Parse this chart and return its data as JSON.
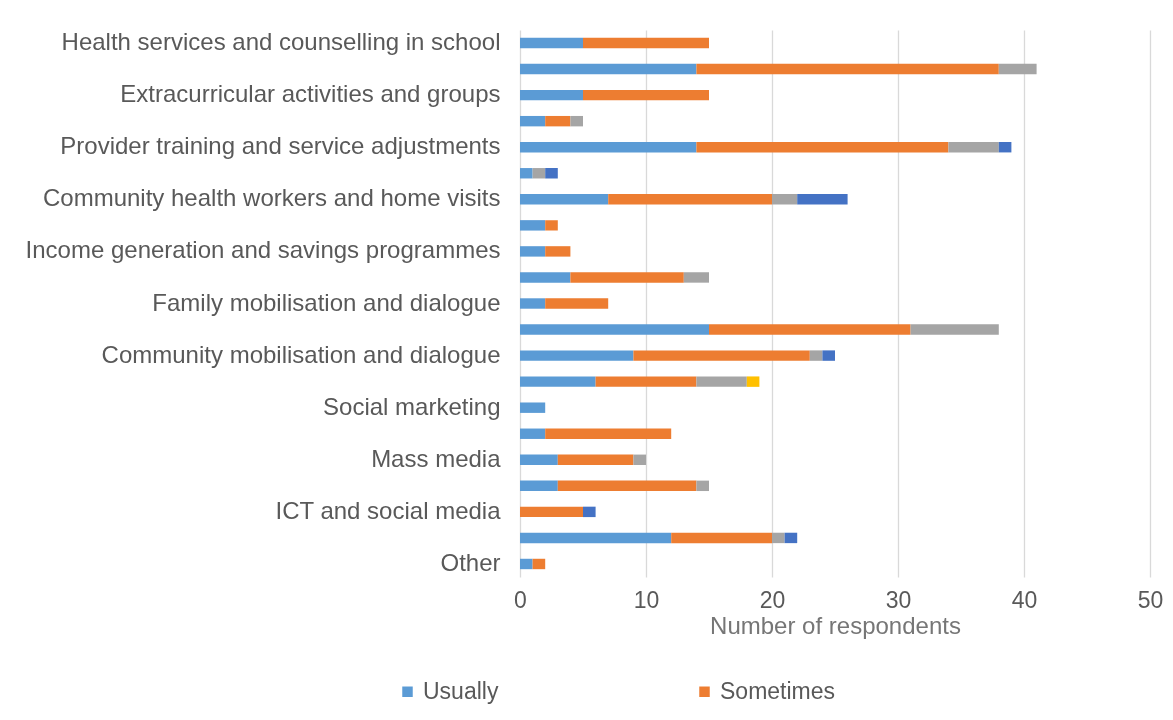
{
  "chart_data": {
    "type": "bar",
    "orientation": "horizontal",
    "stacked": true,
    "xlabel": "Number of respondents",
    "categories": [
      "Health services and counselling in school",
      null,
      "Extracurricular activities and groups",
      null,
      "Provider training and service adjustments",
      null,
      "Community health workers and home visits",
      null,
      "Income generation and savings programmes",
      null,
      "Family mobilisation and dialogue",
      null,
      "Community mobilisation and dialogue",
      null,
      "Social marketing",
      null,
      "Mass media",
      null,
      "ICT and social media",
      null,
      "Other"
    ],
    "series": [
      {
        "name": "Usually",
        "color": "#5b9bd5",
        "values": [
          5,
          14,
          5,
          2,
          14,
          1,
          7,
          2,
          2,
          4,
          2,
          15,
          9,
          6,
          2,
          2,
          3,
          3,
          null,
          12,
          1
        ]
      },
      {
        "name": "Sometimes",
        "color": "#ed7d31",
        "values": [
          10,
          24,
          10,
          2,
          20,
          null,
          13,
          1,
          2,
          9,
          5,
          16,
          14,
          8,
          null,
          10,
          6,
          11,
          5,
          8,
          1
        ]
      },
      {
        "color": "#a5a5a5",
        "values": [
          null,
          3,
          null,
          1,
          4,
          1,
          2,
          null,
          null,
          2,
          null,
          7,
          1,
          4,
          null,
          null,
          1,
          1,
          null,
          1,
          null
        ]
      },
      {
        "color": "#ffc000",
        "values": [
          null,
          null,
          null,
          null,
          null,
          null,
          null,
          null,
          null,
          null,
          null,
          null,
          null,
          1,
          null,
          null,
          null,
          null,
          null,
          null,
          null
        ]
      },
      {
        "color": "#4472c4",
        "values": [
          null,
          null,
          null,
          null,
          1,
          1,
          4,
          null,
          null,
          null,
          null,
          null,
          1,
          null,
          null,
          null,
          null,
          null,
          1,
          1,
          null
        ]
      }
    ],
    "xlim": [
      0,
      50
    ],
    "xticks": [
      0,
      10,
      20,
      30,
      40,
      50
    ],
    "grid": "x",
    "legend": "bottom"
  }
}
